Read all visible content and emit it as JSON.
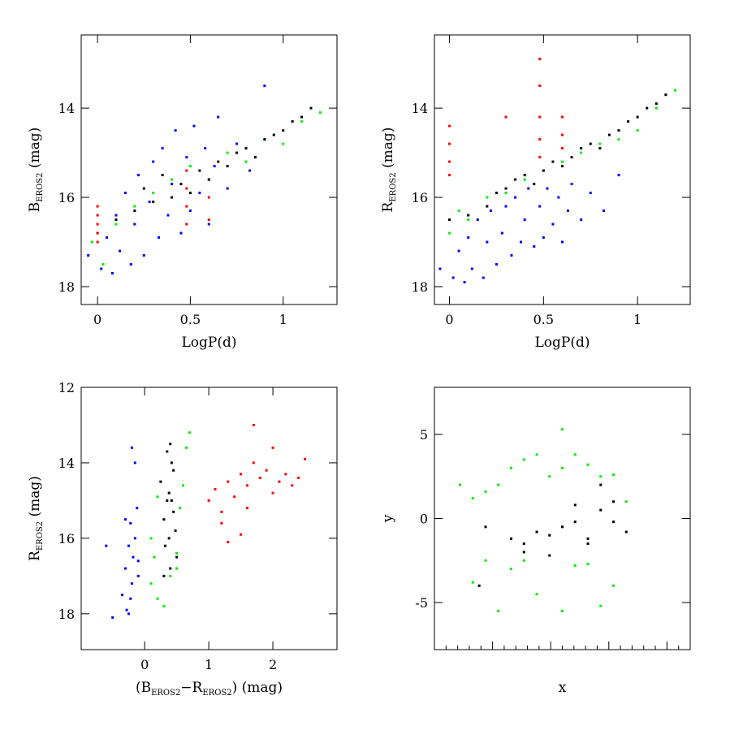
{
  "chart_data": [
    {
      "type": "scatter",
      "xlabel": [
        {
          "text": "LogP(d)"
        }
      ],
      "ylabel": [
        {
          "text": "B"
        },
        {
          "text": "EROS2",
          "sub": true
        },
        {
          "text": "  (mag)"
        }
      ],
      "xlim": [
        -0.088,
        1.29
      ],
      "ylim": [
        18.4,
        12.36
      ],
      "xticks": [
        0,
        0.5,
        1
      ],
      "yticks": [
        14,
        16,
        18
      ],
      "series": [
        {
          "color": "#0000ff",
          "x": [
            -0.05,
            0.02,
            0.05,
            0.08,
            0.1,
            0.12,
            0.15,
            0.18,
            0.2,
            0.22,
            0.25,
            0.28,
            0.3,
            0.33,
            0.35,
            0.38,
            0.4,
            0.42,
            0.45,
            0.48,
            0.5,
            0.52,
            0.55,
            0.58,
            0.6,
            0.63,
            0.65,
            0.7,
            0.75,
            0.82,
            0.9
          ],
          "y": [
            17.3,
            17.6,
            16.9,
            17.7,
            16.4,
            17.2,
            15.9,
            17.5,
            16.6,
            15.5,
            17.3,
            16.1,
            15.2,
            16.9,
            14.9,
            16.4,
            15.7,
            14.5,
            16.8,
            15.1,
            16.3,
            14.4,
            15.9,
            14.9,
            16.6,
            15.3,
            14.2,
            15.8,
            14.8,
            15.4,
            13.5
          ]
        },
        {
          "color": "#00ee00",
          "x": [
            -0.03,
            0.03,
            0.1,
            0.2,
            0.3,
            0.4,
            0.5,
            0.6,
            0.7,
            0.8,
            0.9,
            1.0,
            1.1,
            1.2
          ],
          "y": [
            17.0,
            17.5,
            16.6,
            16.2,
            15.9,
            15.6,
            15.3,
            15.6,
            15.0,
            15.2,
            14.7,
            14.8,
            14.3,
            14.1
          ]
        },
        {
          "color": "#000000",
          "x": [
            0.0,
            0.1,
            0.2,
            0.25,
            0.3,
            0.35,
            0.4,
            0.45,
            0.5,
            0.55,
            0.6,
            0.65,
            0.7,
            0.75,
            0.8,
            0.85,
            0.9,
            0.95,
            1.0,
            1.05,
            1.1,
            1.15
          ],
          "y": [
            16.8,
            16.5,
            16.3,
            15.8,
            16.1,
            15.5,
            16.0,
            15.7,
            15.9,
            15.4,
            15.6,
            15.2,
            15.3,
            15.0,
            14.9,
            15.1,
            14.7,
            14.6,
            14.5,
            14.3,
            14.2,
            14.0
          ]
        },
        {
          "color": "#ff0000",
          "x": [
            0,
            0,
            0,
            0,
            0,
            0.48,
            0.48,
            0.48,
            0.48,
            0.6,
            0.6
          ],
          "y": [
            16.2,
            16.4,
            16.6,
            16.8,
            17.0,
            15.4,
            15.8,
            16.2,
            16.6,
            16.0,
            16.5
          ]
        }
      ]
    },
    {
      "type": "scatter",
      "xlabel": [
        {
          "text": "LogP(d)"
        }
      ],
      "ylabel": [
        {
          "text": "R"
        },
        {
          "text": "EROS2",
          "sub": true
        },
        {
          "text": "  (mag)"
        }
      ],
      "xlim": [
        -0.08,
        1.28
      ],
      "ylim": [
        18.4,
        12.36
      ],
      "xticks": [
        0,
        0.5,
        1
      ],
      "yticks": [
        14,
        16,
        18
      ],
      "series": [
        {
          "color": "#0000ff",
          "x": [
            -0.05,
            0.02,
            0.05,
            0.08,
            0.1,
            0.12,
            0.15,
            0.18,
            0.2,
            0.22,
            0.25,
            0.28,
            0.3,
            0.33,
            0.35,
            0.38,
            0.4,
            0.42,
            0.45,
            0.48,
            0.5,
            0.52,
            0.55,
            0.58,
            0.6,
            0.63,
            0.65,
            0.7,
            0.75,
            0.82,
            0.9
          ],
          "y": [
            17.6,
            17.8,
            17.2,
            17.9,
            16.9,
            17.6,
            16.5,
            17.8,
            17.0,
            16.3,
            17.5,
            16.8,
            16.2,
            17.3,
            16.0,
            17.0,
            16.5,
            15.8,
            17.1,
            16.2,
            16.9,
            15.8,
            16.6,
            16.0,
            17.0,
            16.3,
            15.7,
            16.5,
            15.9,
            16.3,
            15.5
          ]
        },
        {
          "color": "#00ee00",
          "x": [
            0,
            0.05,
            0.1,
            0.2,
            0.3,
            0.4,
            0.5,
            0.6,
            0.7,
            0.8,
            0.9,
            1.0,
            1.1,
            1.2
          ],
          "y": [
            16.8,
            16.3,
            16.5,
            16.0,
            15.9,
            15.6,
            15.4,
            15.2,
            15.0,
            14.8,
            14.7,
            14.5,
            14.0,
            13.6
          ]
        },
        {
          "color": "#000000",
          "x": [
            0.0,
            0.1,
            0.2,
            0.25,
            0.3,
            0.35,
            0.4,
            0.45,
            0.5,
            0.55,
            0.6,
            0.65,
            0.7,
            0.75,
            0.8,
            0.85,
            0.9,
            0.95,
            1.0,
            1.05,
            1.1,
            1.15
          ],
          "y": [
            16.5,
            16.4,
            16.2,
            15.9,
            15.8,
            15.6,
            15.5,
            15.7,
            15.4,
            15.2,
            15.3,
            15.1,
            14.9,
            14.8,
            14.9,
            14.6,
            14.5,
            14.3,
            14.2,
            14.0,
            13.9,
            13.7
          ]
        },
        {
          "color": "#ff0000",
          "x": [
            0,
            0,
            0,
            0,
            0.3,
            0.48,
            0.48,
            0.48,
            0.48,
            0.48,
            0.6,
            0.6,
            0.6
          ],
          "y": [
            14.4,
            14.8,
            15.2,
            15.5,
            14.2,
            12.9,
            13.5,
            14.2,
            14.7,
            15.1,
            14.2,
            14.6,
            14.9
          ]
        }
      ]
    },
    {
      "type": "scatter",
      "xlabel": [
        {
          "text": "(B"
        },
        {
          "text": "EROS2",
          "sub": true
        },
        {
          "text": "−R"
        },
        {
          "text": "EROS2",
          "sub": true
        },
        {
          "text": ")  (mag)"
        }
      ],
      "ylabel": [
        {
          "text": "R"
        },
        {
          "text": "EROS2",
          "sub": true
        },
        {
          "text": "  (mag)"
        }
      ],
      "xlim": [
        -0.99,
        3.0
      ],
      "ylim": [
        18.95,
        12
      ],
      "xticks": [
        0,
        1,
        2
      ],
      "yticks": [
        12,
        14,
        16,
        18
      ],
      "series": [
        {
          "color": "#0000ff",
          "x": [
            -0.35,
            -0.3,
            -0.28,
            -0.25,
            -0.22,
            -0.2,
            -0.18,
            -0.15,
            -0.12,
            -0.1,
            -0.3,
            -0.25,
            -0.2,
            -0.15,
            -0.1,
            -0.22,
            -0.6,
            -0.5
          ],
          "y": [
            17.5,
            16.8,
            17.9,
            16.2,
            15.6,
            17.2,
            16.5,
            14.0,
            15.2,
            17.0,
            15.5,
            18.0,
            13.6,
            16.0,
            16.6,
            17.6,
            16.2,
            18.1
          ]
        },
        {
          "color": "#00ee00",
          "x": [
            0.1,
            0.15,
            0.2,
            0.3,
            0.5,
            0.55,
            0.6,
            0.65,
            0.7,
            0.2,
            0.4,
            0.5,
            0.1
          ],
          "y": [
            17.2,
            16.5,
            17.6,
            17.8,
            16.4,
            15.2,
            14.6,
            13.6,
            13.2,
            14.9,
            17.0,
            16.8,
            16.0
          ]
        },
        {
          "color": "#000000",
          "x": [
            0.25,
            0.3,
            0.32,
            0.35,
            0.38,
            0.4,
            0.42,
            0.45,
            0.48,
            0.5,
            0.3,
            0.35,
            0.4,
            0.45,
            0.38,
            0.42
          ],
          "y": [
            14.5,
            15.5,
            16.2,
            13.7,
            14.8,
            16.8,
            15.0,
            14.2,
            15.8,
            16.5,
            17.0,
            15.0,
            13.5,
            15.3,
            16.0,
            14.0
          ]
        },
        {
          "color": "#ff0000",
          "x": [
            1.0,
            1.1,
            1.2,
            1.3,
            1.4,
            1.5,
            1.6,
            1.7,
            1.8,
            1.9,
            2.0,
            2.1,
            2.2,
            2.3,
            2.4,
            2.5,
            1.5,
            1.7,
            1.2,
            1.6,
            2.0,
            1.3
          ],
          "y": [
            15.0,
            14.7,
            15.3,
            14.5,
            14.9,
            14.3,
            14.6,
            13.0,
            14.4,
            14.2,
            13.6,
            14.5,
            14.3,
            14.6,
            14.4,
            13.9,
            15.9,
            14.0,
            15.6,
            15.2,
            14.8,
            16.1
          ]
        }
      ]
    },
    {
      "type": "scatter",
      "xlabel": [
        {
          "text": "x"
        }
      ],
      "ylabel": [
        {
          "text": "y"
        }
      ],
      "xlim": [
        -10,
        10
      ],
      "ylim": [
        -7.8,
        7.8
      ],
      "xticks": [],
      "yticks": [
        -5,
        0,
        5
      ],
      "series": [
        {
          "color": "#00ee00",
          "x": [
            -8,
            -7,
            -6,
            -5,
            -4,
            -3,
            -2,
            -1,
            0,
            1,
            2,
            3,
            4,
            5,
            -6,
            -4,
            -2,
            0,
            2,
            4,
            -7,
            -3,
            1,
            3,
            -5,
            0
          ],
          "y": [
            2,
            1.2,
            1.6,
            2.0,
            3.0,
            3.5,
            3.8,
            2.5,
            3.0,
            3.8,
            3.2,
            2.5,
            2.6,
            1.0,
            -2.5,
            -3.0,
            -4.5,
            -5.5,
            -2.7,
            -4.0,
            -3.8,
            -2.5,
            -2.8,
            -5.2,
            -5.5,
            5.3
          ]
        },
        {
          "color": "#000000",
          "x": [
            -6,
            -4,
            -3,
            -2,
            -1,
            0,
            1,
            2,
            3,
            4,
            5,
            -3,
            -1,
            1,
            3,
            4,
            2,
            -6.5
          ],
          "y": [
            -0.5,
            -1.2,
            -1.5,
            -0.8,
            -1.0,
            -0.5,
            -0.2,
            -1.5,
            0.5,
            -0.2,
            -0.8,
            -2.0,
            -2.2,
            0.8,
            2.0,
            1.0,
            -1.2,
            -4.0
          ]
        }
      ]
    }
  ]
}
